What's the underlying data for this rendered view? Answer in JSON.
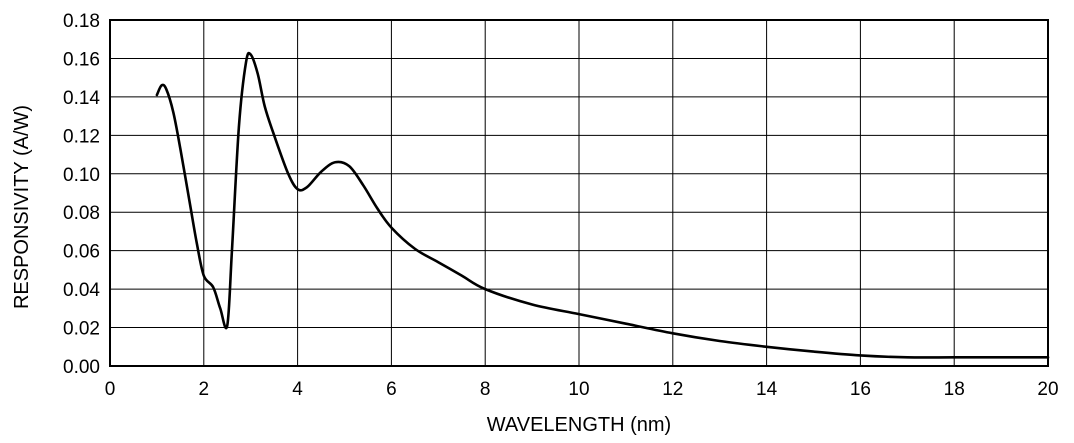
{
  "chart_data": {
    "type": "line",
    "title": "",
    "xlabel": "WAVELENGTH (nm)",
    "ylabel": "RESPONSIVITY (A/W)",
    "xlim": [
      0,
      20
    ],
    "ylim": [
      0,
      0.18
    ],
    "grid": true,
    "x_ticks": [
      0,
      2,
      4,
      6,
      8,
      10,
      12,
      14,
      16,
      18,
      20
    ],
    "x_tick_labels": [
      "0",
      "2",
      "4",
      "6",
      "8",
      "10",
      "12",
      "14",
      "16",
      "18",
      "20"
    ],
    "y_ticks": [
      0,
      0.02,
      0.04,
      0.06,
      0.08,
      0.1,
      0.12,
      0.14,
      0.16,
      0.18
    ],
    "y_tick_labels": [
      "0.00",
      "0.02",
      "0.04",
      "0.06",
      "0.08",
      "0.10",
      "0.12",
      "0.14",
      "0.16",
      "0.18"
    ],
    "series": [
      {
        "name": "Responsivity",
        "x": [
          1.0,
          1.1,
          1.2,
          1.35,
          1.5,
          1.7,
          1.85,
          2.0,
          2.2,
          2.35,
          2.5,
          2.6,
          2.75,
          2.9,
          3.0,
          3.15,
          3.3,
          3.5,
          3.8,
          4.0,
          4.2,
          4.5,
          4.8,
          5.1,
          5.4,
          5.7,
          6.0,
          6.5,
          7.0,
          7.5,
          8.0,
          9.0,
          10.0,
          11.0,
          12.0,
          13.0,
          14.0,
          15.0,
          16.0,
          17.0,
          18.0,
          19.0,
          20.0
        ],
        "y": [
          0.141,
          0.146,
          0.144,
          0.132,
          0.113,
          0.085,
          0.064,
          0.047,
          0.041,
          0.03,
          0.021,
          0.06,
          0.125,
          0.158,
          0.162,
          0.152,
          0.135,
          0.12,
          0.1,
          0.092,
          0.093,
          0.101,
          0.106,
          0.104,
          0.094,
          0.082,
          0.072,
          0.061,
          0.054,
          0.047,
          0.04,
          0.032,
          0.027,
          0.022,
          0.017,
          0.013,
          0.01,
          0.0075,
          0.0055,
          0.0045,
          0.0045,
          0.0045,
          0.0045
        ]
      }
    ]
  }
}
